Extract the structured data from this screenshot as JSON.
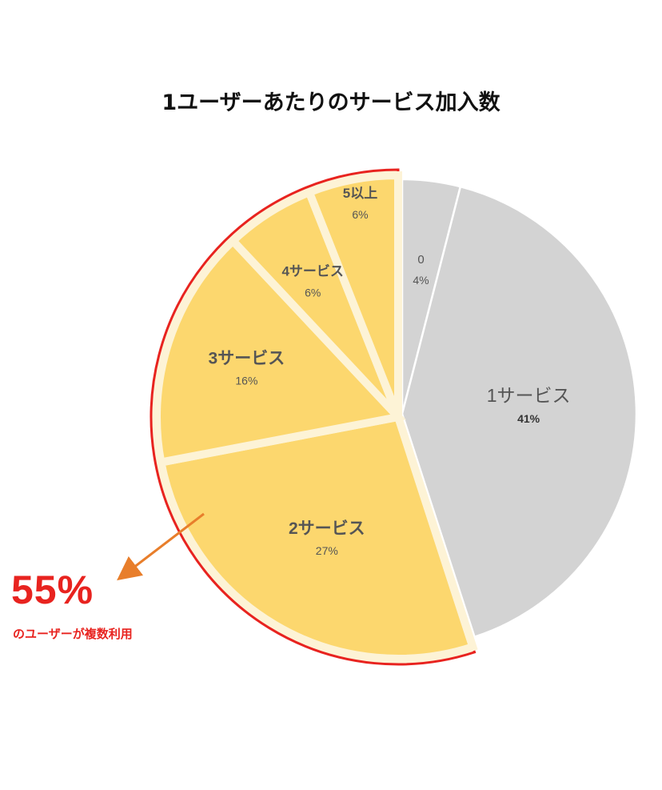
{
  "title": "1ユーザーあたりのサービス加入数",
  "callout": {
    "percent": "55%",
    "text": "のユーザーが複数利用"
  },
  "colors": {
    "highlight_fill": "#fcd76e",
    "highlight_border": "#fdf3d6",
    "group_outline": "#e8231f",
    "grey_fill": "#d3d3d3",
    "arrow": "#e87e2b",
    "label_dark": "#555555"
  },
  "chart_data": {
    "type": "pie",
    "title": "1ユーザーあたりのサービス加入数",
    "start": "12 o'clock, clockwise",
    "slices": [
      {
        "label": "0",
        "value": 4,
        "pct_label": "4%",
        "group": "grey"
      },
      {
        "label": "1サービス",
        "value": 41,
        "pct_label": "41%",
        "group": "grey"
      },
      {
        "label": "2サービス",
        "value": 27,
        "pct_label": "27%",
        "group": "multi"
      },
      {
        "label": "3サービス",
        "value": 16,
        "pct_label": "16%",
        "group": "multi"
      },
      {
        "label": "4サービス",
        "value": 6,
        "pct_label": "6%",
        "group": "multi"
      },
      {
        "label": "5以上",
        "value": 6,
        "pct_label": "6%",
        "group": "multi"
      }
    ],
    "multi_use_total": "55%"
  }
}
